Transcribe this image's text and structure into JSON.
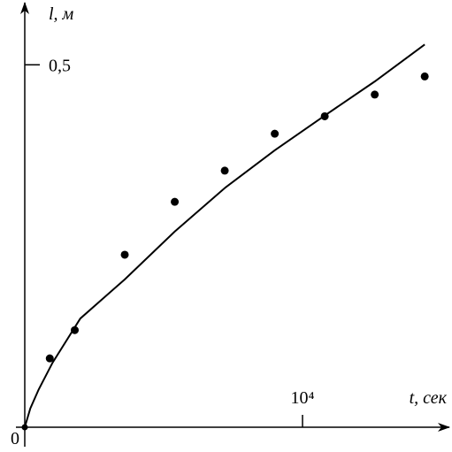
{
  "chart_data": {
    "type": "scatter",
    "x_label": "t, сек",
    "y_label": "l, м",
    "xlim": [
      0,
      15350
    ],
    "ylim": [
      0,
      0.587
    ],
    "xticks": [
      0,
      {
        "value": 10000,
        "label": "10⁴"
      }
    ],
    "yticks": [
      {
        "value": 0.5,
        "label": "0,5"
      }
    ],
    "color": "#000000",
    "series": [
      {
        "mode": "markers",
        "x": [
          900,
          1800,
          3600,
          5400,
          7200,
          9000,
          10800,
          12600,
          14400
        ],
        "values": [
          0.095,
          0.134,
          0.238,
          0.311,
          0.354,
          0.405,
          0.429,
          0.459,
          0.484
        ]
      },
      {
        "mode": "line",
        "x": [
          0,
          200,
          500,
          1000,
          2000,
          3600,
          5400,
          7200,
          9000,
          10800,
          12600,
          14400
        ],
        "values": [
          0,
          0.026,
          0.052,
          0.089,
          0.15,
          0.204,
          0.27,
          0.33,
          0.382,
          0.43,
          0.477,
          0.528
        ]
      }
    ]
  }
}
